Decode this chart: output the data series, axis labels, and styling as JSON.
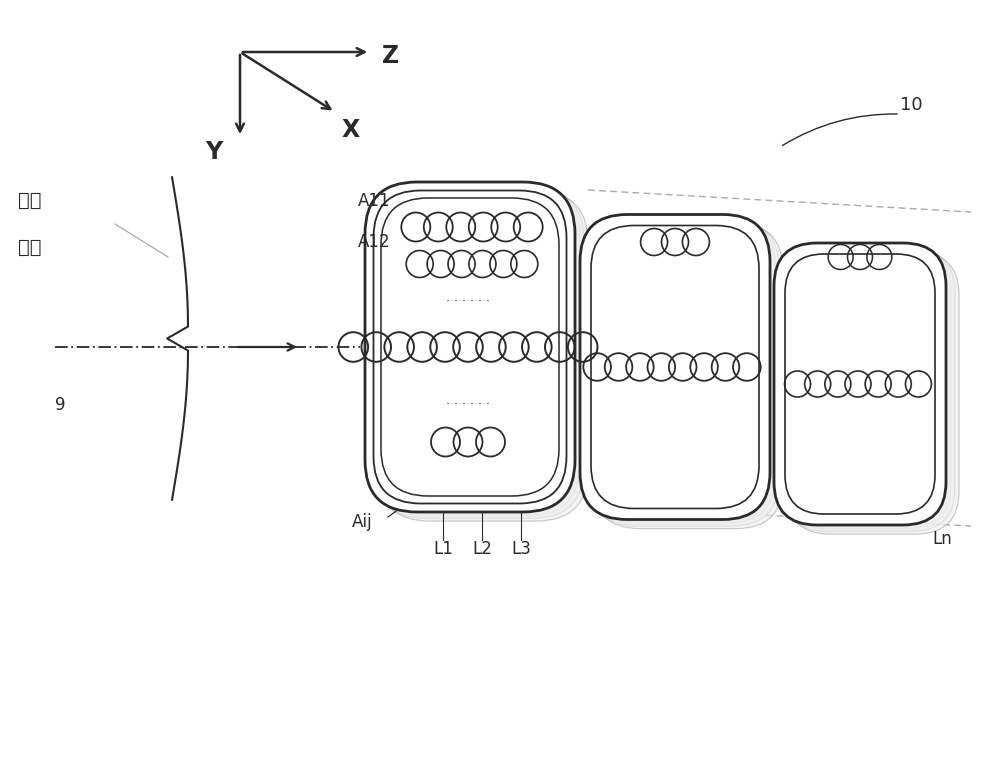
{
  "bg_color": "#ffffff",
  "line_color": "#2a2a2a",
  "light_line_color": "#aaaaaa",
  "fig_width": 10.0,
  "fig_height": 7.62,
  "dpi": 100,
  "labels": {
    "Z": "Z",
    "X": "X",
    "Y": "Y",
    "skin": "皮肤",
    "epidermis": "表皮",
    "A11": "A11",
    "A12": "A12",
    "Aij": "Aij",
    "L1": "L1",
    "L2": "L2",
    "L3": "L3",
    "Ln": "Ln",
    "label9": "9",
    "label10": "10"
  }
}
